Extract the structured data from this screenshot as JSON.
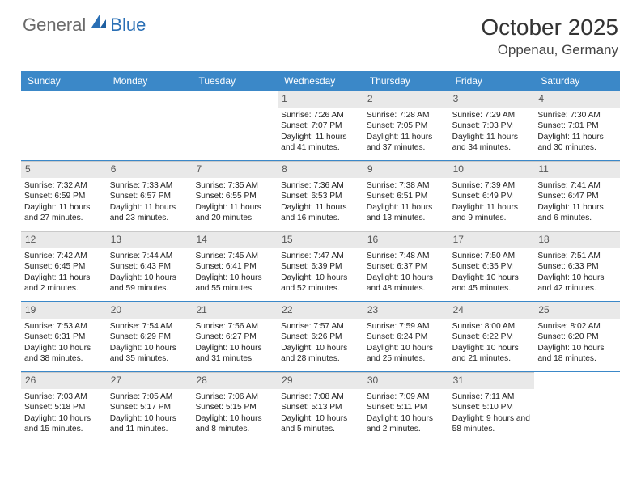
{
  "logo": {
    "general": "General",
    "blue": "Blue"
  },
  "title": "October 2025",
  "location": "Oppenau, Germany",
  "colors": {
    "header_bg": "#3b88c8",
    "header_text": "#ffffff",
    "daynum_bg": "#e9e9e9",
    "row_border": "#3b88c8",
    "logo_gray": "#6a6a6a",
    "logo_blue": "#2a6fb5"
  },
  "day_names": [
    "Sunday",
    "Monday",
    "Tuesday",
    "Wednesday",
    "Thursday",
    "Friday",
    "Saturday"
  ],
  "weeks": [
    [
      {
        "n": "",
        "sr": "",
        "ss": "",
        "dl": ""
      },
      {
        "n": "",
        "sr": "",
        "ss": "",
        "dl": ""
      },
      {
        "n": "",
        "sr": "",
        "ss": "",
        "dl": ""
      },
      {
        "n": "1",
        "sr": "Sunrise: 7:26 AM",
        "ss": "Sunset: 7:07 PM",
        "dl": "Daylight: 11 hours and 41 minutes."
      },
      {
        "n": "2",
        "sr": "Sunrise: 7:28 AM",
        "ss": "Sunset: 7:05 PM",
        "dl": "Daylight: 11 hours and 37 minutes."
      },
      {
        "n": "3",
        "sr": "Sunrise: 7:29 AM",
        "ss": "Sunset: 7:03 PM",
        "dl": "Daylight: 11 hours and 34 minutes."
      },
      {
        "n": "4",
        "sr": "Sunrise: 7:30 AM",
        "ss": "Sunset: 7:01 PM",
        "dl": "Daylight: 11 hours and 30 minutes."
      }
    ],
    [
      {
        "n": "5",
        "sr": "Sunrise: 7:32 AM",
        "ss": "Sunset: 6:59 PM",
        "dl": "Daylight: 11 hours and 27 minutes."
      },
      {
        "n": "6",
        "sr": "Sunrise: 7:33 AM",
        "ss": "Sunset: 6:57 PM",
        "dl": "Daylight: 11 hours and 23 minutes."
      },
      {
        "n": "7",
        "sr": "Sunrise: 7:35 AM",
        "ss": "Sunset: 6:55 PM",
        "dl": "Daylight: 11 hours and 20 minutes."
      },
      {
        "n": "8",
        "sr": "Sunrise: 7:36 AM",
        "ss": "Sunset: 6:53 PM",
        "dl": "Daylight: 11 hours and 16 minutes."
      },
      {
        "n": "9",
        "sr": "Sunrise: 7:38 AM",
        "ss": "Sunset: 6:51 PM",
        "dl": "Daylight: 11 hours and 13 minutes."
      },
      {
        "n": "10",
        "sr": "Sunrise: 7:39 AM",
        "ss": "Sunset: 6:49 PM",
        "dl": "Daylight: 11 hours and 9 minutes."
      },
      {
        "n": "11",
        "sr": "Sunrise: 7:41 AM",
        "ss": "Sunset: 6:47 PM",
        "dl": "Daylight: 11 hours and 6 minutes."
      }
    ],
    [
      {
        "n": "12",
        "sr": "Sunrise: 7:42 AM",
        "ss": "Sunset: 6:45 PM",
        "dl": "Daylight: 11 hours and 2 minutes."
      },
      {
        "n": "13",
        "sr": "Sunrise: 7:44 AM",
        "ss": "Sunset: 6:43 PM",
        "dl": "Daylight: 10 hours and 59 minutes."
      },
      {
        "n": "14",
        "sr": "Sunrise: 7:45 AM",
        "ss": "Sunset: 6:41 PM",
        "dl": "Daylight: 10 hours and 55 minutes."
      },
      {
        "n": "15",
        "sr": "Sunrise: 7:47 AM",
        "ss": "Sunset: 6:39 PM",
        "dl": "Daylight: 10 hours and 52 minutes."
      },
      {
        "n": "16",
        "sr": "Sunrise: 7:48 AM",
        "ss": "Sunset: 6:37 PM",
        "dl": "Daylight: 10 hours and 48 minutes."
      },
      {
        "n": "17",
        "sr": "Sunrise: 7:50 AM",
        "ss": "Sunset: 6:35 PM",
        "dl": "Daylight: 10 hours and 45 minutes."
      },
      {
        "n": "18",
        "sr": "Sunrise: 7:51 AM",
        "ss": "Sunset: 6:33 PM",
        "dl": "Daylight: 10 hours and 42 minutes."
      }
    ],
    [
      {
        "n": "19",
        "sr": "Sunrise: 7:53 AM",
        "ss": "Sunset: 6:31 PM",
        "dl": "Daylight: 10 hours and 38 minutes."
      },
      {
        "n": "20",
        "sr": "Sunrise: 7:54 AM",
        "ss": "Sunset: 6:29 PM",
        "dl": "Daylight: 10 hours and 35 minutes."
      },
      {
        "n": "21",
        "sr": "Sunrise: 7:56 AM",
        "ss": "Sunset: 6:27 PM",
        "dl": "Daylight: 10 hours and 31 minutes."
      },
      {
        "n": "22",
        "sr": "Sunrise: 7:57 AM",
        "ss": "Sunset: 6:26 PM",
        "dl": "Daylight: 10 hours and 28 minutes."
      },
      {
        "n": "23",
        "sr": "Sunrise: 7:59 AM",
        "ss": "Sunset: 6:24 PM",
        "dl": "Daylight: 10 hours and 25 minutes."
      },
      {
        "n": "24",
        "sr": "Sunrise: 8:00 AM",
        "ss": "Sunset: 6:22 PM",
        "dl": "Daylight: 10 hours and 21 minutes."
      },
      {
        "n": "25",
        "sr": "Sunrise: 8:02 AM",
        "ss": "Sunset: 6:20 PM",
        "dl": "Daylight: 10 hours and 18 minutes."
      }
    ],
    [
      {
        "n": "26",
        "sr": "Sunrise: 7:03 AM",
        "ss": "Sunset: 5:18 PM",
        "dl": "Daylight: 10 hours and 15 minutes."
      },
      {
        "n": "27",
        "sr": "Sunrise: 7:05 AM",
        "ss": "Sunset: 5:17 PM",
        "dl": "Daylight: 10 hours and 11 minutes."
      },
      {
        "n": "28",
        "sr": "Sunrise: 7:06 AM",
        "ss": "Sunset: 5:15 PM",
        "dl": "Daylight: 10 hours and 8 minutes."
      },
      {
        "n": "29",
        "sr": "Sunrise: 7:08 AM",
        "ss": "Sunset: 5:13 PM",
        "dl": "Daylight: 10 hours and 5 minutes."
      },
      {
        "n": "30",
        "sr": "Sunrise: 7:09 AM",
        "ss": "Sunset: 5:11 PM",
        "dl": "Daylight: 10 hours and 2 minutes."
      },
      {
        "n": "31",
        "sr": "Sunrise: 7:11 AM",
        "ss": "Sunset: 5:10 PM",
        "dl": "Daylight: 9 hours and 58 minutes."
      },
      {
        "n": "",
        "sr": "",
        "ss": "",
        "dl": ""
      }
    ]
  ]
}
